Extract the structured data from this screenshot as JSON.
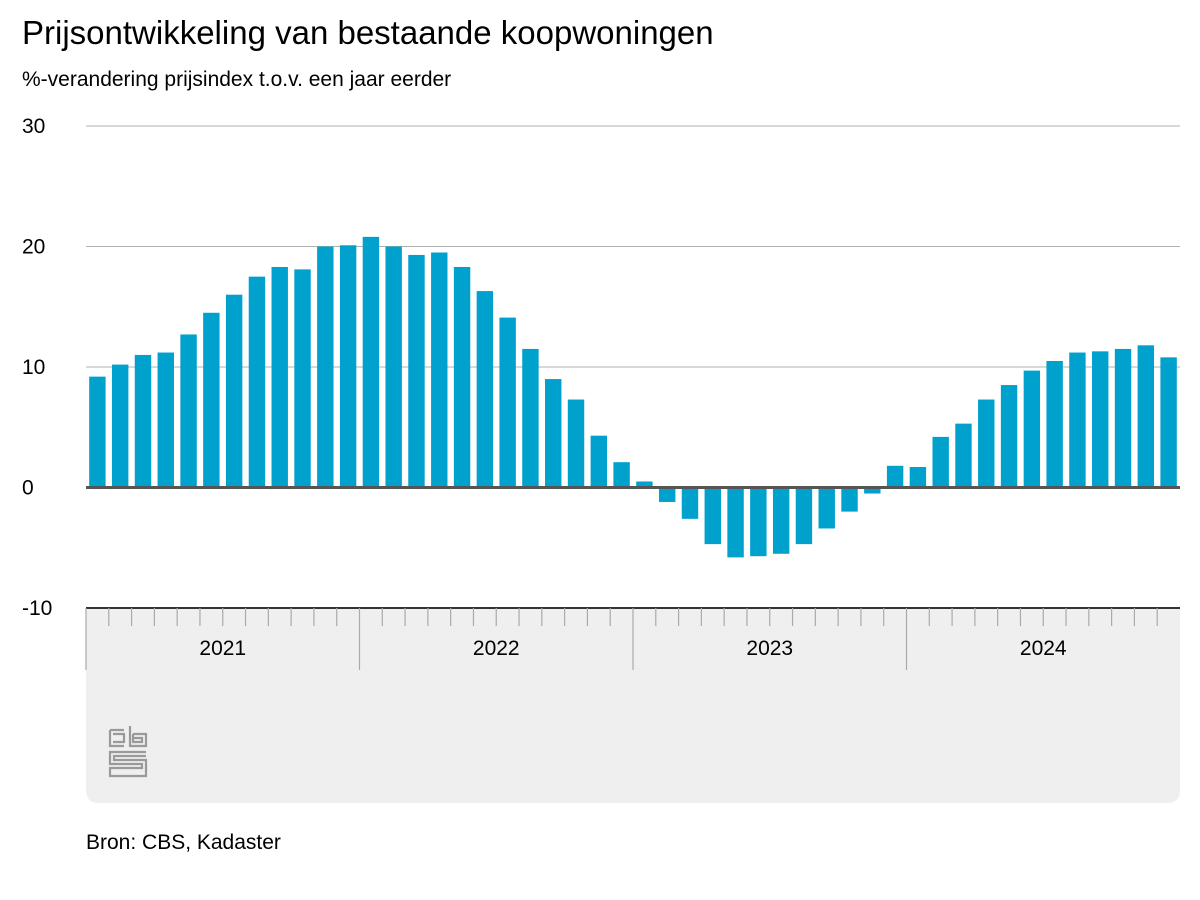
{
  "chart_data": {
    "type": "bar",
    "title": "Prijsontwikkeling van bestaande koopwoningen",
    "subtitle": "%-verandering prijsindex t.o.v. een jaar eerder",
    "xlabel": "",
    "ylabel": "",
    "ylim": [
      -10,
      30
    ],
    "yticks": [
      30,
      20,
      10,
      0,
      -10
    ],
    "grid": true,
    "years": [
      "2021",
      "2022",
      "2023",
      "2024"
    ],
    "months_per_year": 12,
    "series": [
      {
        "values": [
          9.2,
          10.2,
          11.0,
          11.2,
          12.7,
          14.5,
          16.0,
          17.5,
          18.3,
          18.1,
          20.0,
          20.1,
          20.8,
          20.0,
          19.3,
          19.5,
          18.3,
          16.3,
          14.1,
          11.5,
          9.0,
          7.3,
          4.3,
          2.1,
          0.5,
          -1.2,
          -2.6,
          -4.7,
          -5.8,
          -5.7,
          -5.5,
          -4.7,
          -3.4,
          -2.0,
          -0.5,
          1.8,
          1.7,
          4.2,
          5.3,
          7.3,
          8.5,
          9.7,
          10.5,
          11.2,
          11.3,
          11.5,
          11.8,
          10.8
        ]
      }
    ],
    "colors": {
      "bar": "#00a1cd",
      "grid": "#b0b0b0",
      "zero": "#555555",
      "panel": "#efefef"
    }
  },
  "source": "Bron: CBS, Kadaster",
  "logo": {
    "icon": "cbs-logo-icon",
    "text": "cbs"
  }
}
